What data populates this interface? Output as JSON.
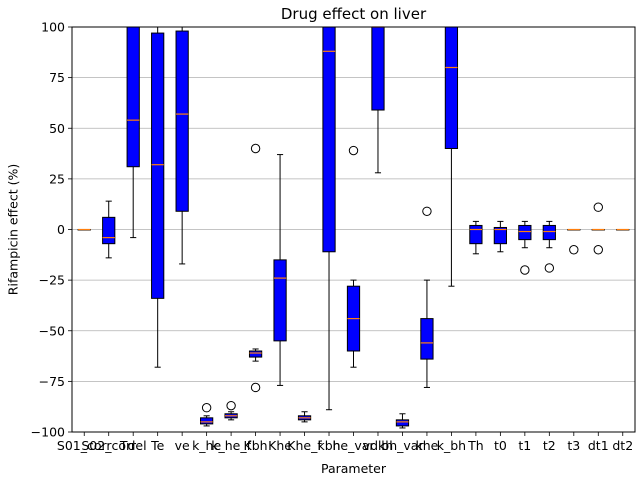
{
  "chart_data": {
    "type": "box",
    "title": "Drug effect on liver",
    "xlabel": "Parameter",
    "ylabel": "Rifampicin effect (%)",
    "ylim": [
      -100,
      100
    ],
    "yticks": [
      -100,
      -75,
      -50,
      -25,
      0,
      25,
      50,
      75,
      100
    ],
    "grid": "horizontal",
    "colors": {
      "box_fill": "#0000ff",
      "box_edge": "#000000",
      "median": "#ff7f0e",
      "grid": "#b0b0b0",
      "whisker": "#000000"
    },
    "categories": [
      "S01_corr",
      "S02_corr",
      "Tdel",
      "Te",
      "ve",
      "k_he",
      "k_he_f",
      "Kbh",
      "Khe",
      "Khe_f",
      "kbh",
      "he_var",
      "vdkh",
      "bh_var",
      "khe",
      "k_bh",
      "Th",
      "t0",
      "t1",
      "t2",
      "t3",
      "dt1",
      "dt2"
    ],
    "boxes": [
      {
        "name": "S01_corr",
        "q1": 0,
        "median": 0,
        "q3": 0,
        "whislo": 0,
        "whishi": 0,
        "fliers": []
      },
      {
        "name": "S02_corr",
        "q1": -7,
        "median": -4,
        "q3": 6,
        "whislo": -14,
        "whishi": 14,
        "fliers": []
      },
      {
        "name": "Tdel",
        "q1": 31,
        "median": 54,
        "q3": 100,
        "whislo": -4,
        "whishi": 100,
        "fliers": []
      },
      {
        "name": "Te",
        "q1": -34,
        "median": 32,
        "q3": 97,
        "whislo": -68,
        "whishi": 100,
        "fliers": []
      },
      {
        "name": "ve",
        "q1": 9,
        "median": 57,
        "q3": 98,
        "whislo": -17,
        "whishi": 100,
        "fliers": []
      },
      {
        "name": "k_he",
        "q1": -96,
        "median": -95,
        "q3": -93,
        "whislo": -97,
        "whishi": -92,
        "fliers": [
          -88
        ]
      },
      {
        "name": "k_he_f",
        "q1": -93,
        "median": -92,
        "q3": -91,
        "whislo": -94,
        "whishi": -90,
        "fliers": [
          -87
        ]
      },
      {
        "name": "Kbh",
        "q1": -63,
        "median": -61,
        "q3": -60,
        "whislo": -65,
        "whishi": -59,
        "fliers": [
          40,
          -78
        ]
      },
      {
        "name": "Khe",
        "q1": -55,
        "median": -24,
        "q3": -15,
        "whislo": -77,
        "whishi": 37,
        "fliers": []
      },
      {
        "name": "Khe_f",
        "q1": -94,
        "median": -93,
        "q3": -92,
        "whislo": -95,
        "whishi": -90,
        "fliers": []
      },
      {
        "name": "kbh",
        "q1": -11,
        "median": 88,
        "q3": 100,
        "whislo": -89,
        "whishi": 100,
        "fliers": []
      },
      {
        "name": "he_var",
        "q1": -60,
        "median": -44,
        "q3": -28,
        "whislo": -68,
        "whishi": -25,
        "fliers": [
          39
        ]
      },
      {
        "name": "vdkh",
        "q1": 59,
        "median": 100,
        "q3": 100,
        "whislo": 28,
        "whishi": 100,
        "fliers": []
      },
      {
        "name": "bh_var",
        "q1": -97,
        "median": -95,
        "q3": -94,
        "whislo": -98,
        "whishi": -91,
        "fliers": []
      },
      {
        "name": "khe",
        "q1": -64,
        "median": -56,
        "q3": -44,
        "whislo": -78,
        "whishi": -25,
        "fliers": [
          9
        ]
      },
      {
        "name": "k_bh",
        "q1": 40,
        "median": 80,
        "q3": 100,
        "whislo": -28,
        "whishi": 100,
        "fliers": []
      },
      {
        "name": "Th",
        "q1": -7,
        "median": 0,
        "q3": 2,
        "whislo": -12,
        "whishi": 4,
        "fliers": []
      },
      {
        "name": "t0",
        "q1": -7,
        "median": 0,
        "q3": 1,
        "whislo": -11,
        "whishi": 4,
        "fliers": []
      },
      {
        "name": "t1",
        "q1": -5,
        "median": -1,
        "q3": 2,
        "whislo": -9,
        "whishi": 4,
        "fliers": [
          -20
        ]
      },
      {
        "name": "t2",
        "q1": -5,
        "median": -1,
        "q3": 2,
        "whislo": -9,
        "whishi": 4,
        "fliers": [
          -19
        ]
      },
      {
        "name": "t3",
        "q1": 0,
        "median": 0,
        "q3": 0,
        "whislo": 0,
        "whishi": 0,
        "fliers": [
          -10
        ]
      },
      {
        "name": "dt1",
        "q1": 0,
        "median": 0,
        "q3": 0,
        "whislo": 0,
        "whishi": 0,
        "fliers": [
          11,
          -10
        ]
      },
      {
        "name": "dt2",
        "q1": 0,
        "median": 0,
        "q3": 0,
        "whislo": 0,
        "whishi": 0,
        "fliers": []
      }
    ]
  }
}
